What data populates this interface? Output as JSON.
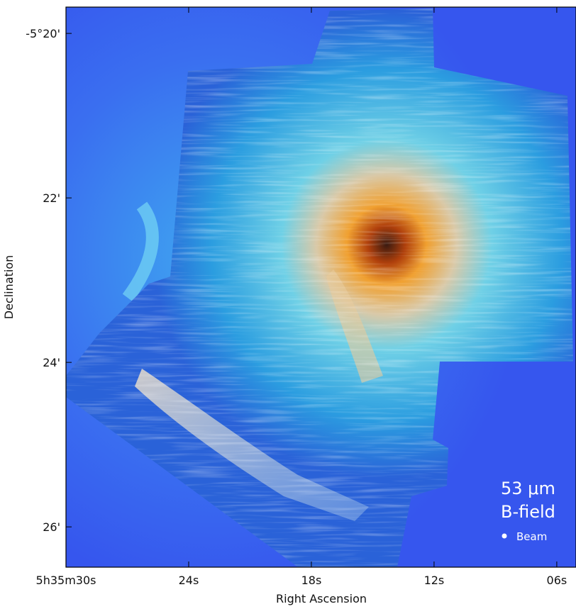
{
  "chart_data": {
    "type": "image",
    "xlabel": "Right Ascension",
    "ylabel": "Declination",
    "xlim": [
      30,
      5.06
    ],
    "ylim": [
      26.49,
      19.68
    ],
    "xticks": [
      {
        "value": 30,
        "label": "5h35m30s"
      },
      {
        "value": 24,
        "label": "24s"
      },
      {
        "value": 18,
        "label": "18s"
      },
      {
        "value": 12,
        "label": "12s"
      },
      {
        "value": 6,
        "label": "06s"
      }
    ],
    "yticks": [
      {
        "value": 20,
        "label": "-5°20'"
      },
      {
        "value": 22,
        "label": "22'"
      },
      {
        "value": 24,
        "label": "24'"
      },
      {
        "value": 26,
        "label": "26'"
      }
    ],
    "annotations": [
      "53 μm",
      "B-field",
      "Beam"
    ]
  }
}
